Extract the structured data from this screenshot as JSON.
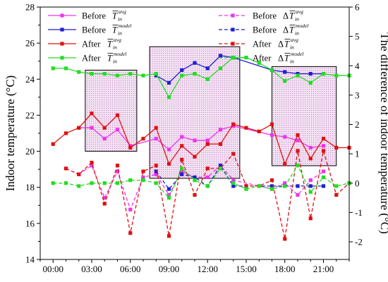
{
  "chart_data": {
    "type": "line",
    "xlabel": "",
    "ylabel_left": "Indoor temperature (°C)",
    "ylabel_right": "The difference of indoor temperature (°C)",
    "x_range": [
      -1,
      23
    ],
    "y_left_range": [
      14,
      28
    ],
    "y_right_range": [
      -2.6,
      6
    ],
    "x_ticks": [
      {
        "value": 0,
        "label": "00:00"
      },
      {
        "value": 3,
        "label": "03:00"
      },
      {
        "value": 6,
        "label": "06:00"
      },
      {
        "value": 9,
        "label": "09:00"
      },
      {
        "value": 12,
        "label": "12:00"
      },
      {
        "value": 15,
        "label": "15:00"
      },
      {
        "value": 18,
        "label": "18:00"
      },
      {
        "value": 21,
        "label": "21:00"
      }
    ],
    "y_left_ticks": [
      "14",
      "16",
      "18",
      "20",
      "22",
      "24",
      "26",
      "28"
    ],
    "y_right_ticks": [
      "-2",
      "-1",
      "0",
      "1",
      "2",
      "3",
      "4",
      "5",
      "6"
    ],
    "legend": {
      "placement": "top-left",
      "entries": [
        {
          "word": "Before",
          "sym": "T",
          "sub": "in",
          "sup": "avg",
          "delta": false
        },
        {
          "word": "Before",
          "sym": "T",
          "sub": "in",
          "sup": "model",
          "delta": false
        },
        {
          "word": "After",
          "sym": "T",
          "sub": "in",
          "sup": "avg",
          "delta": false
        },
        {
          "word": "After",
          "sym": "T",
          "sub": "in",
          "sup": "model",
          "delta": false
        },
        {
          "word": "Before",
          "sym": "T",
          "sub": "in",
          "sup": "avg",
          "delta": true
        },
        {
          "word": "Before",
          "sym": "T",
          "sub": "in",
          "sup": "model",
          "delta": true
        },
        {
          "word": "After",
          "sym": "T",
          "sub": "in",
          "sup": "avg",
          "delta": true
        },
        {
          "word": "After",
          "sym": "T",
          "sub": "in",
          "sup": "model",
          "delta": true
        }
      ]
    },
    "highlight_windows": [
      {
        "x": [
          2.5,
          6.5
        ],
        "y_left": [
          20,
          24.5
        ]
      },
      {
        "x": [
          7.5,
          14.5
        ],
        "y_left": [
          18.5,
          25.8
        ]
      },
      {
        "x": [
          17,
          22
        ],
        "y_left": [
          19.2,
          24.7
        ]
      }
    ],
    "series": [
      {
        "key": "before_avg",
        "axis": "left",
        "style": "solid",
        "color": "#ee33ee",
        "points": [
          [
            2,
            21.3
          ],
          [
            3,
            21.3
          ],
          [
            4,
            20.7
          ],
          [
            5,
            21.2
          ],
          [
            6,
            20.3
          ],
          [
            8,
            20.7
          ],
          [
            9,
            20.1
          ],
          [
            10,
            20.8
          ],
          [
            11,
            20.6
          ],
          [
            12,
            20.6
          ],
          [
            13,
            21.2
          ],
          [
            14,
            21.4
          ],
          [
            17,
            20.9
          ],
          [
            18,
            20.8
          ],
          [
            19,
            20.6
          ],
          [
            20,
            20.2
          ],
          [
            21,
            20.3
          ]
        ]
      },
      {
        "key": "before_model",
        "axis": "left",
        "style": "solid",
        "color": "#1f1fd1",
        "points": [
          [
            8,
            24.2
          ],
          [
            9,
            23.8
          ],
          [
            10,
            24.5
          ],
          [
            11,
            24.9
          ],
          [
            12,
            24.6
          ],
          [
            13,
            25.3
          ],
          [
            14,
            25.2
          ],
          [
            17,
            24.5
          ],
          [
            18,
            24.4
          ],
          [
            19,
            24.3
          ],
          [
            20,
            24.3
          ],
          [
            21,
            24.3
          ]
        ]
      },
      {
        "key": "after_avg",
        "axis": "left",
        "style": "solid",
        "color": "#e01010",
        "points": [
          [
            0,
            20.4
          ],
          [
            1,
            21.0
          ],
          [
            2,
            21.3
          ],
          [
            3,
            22.1
          ],
          [
            4,
            21.3
          ],
          [
            5,
            22.0
          ],
          [
            6,
            20.2
          ],
          [
            7,
            20.7
          ],
          [
            8,
            21.3
          ],
          [
            9,
            19.3
          ],
          [
            10,
            20.3
          ],
          [
            11,
            19.7
          ],
          [
            12,
            20.4
          ],
          [
            13,
            20.4
          ],
          [
            14,
            21.5
          ],
          [
            15,
            21.3
          ],
          [
            16,
            21.1
          ],
          [
            17,
            21.5
          ],
          [
            18,
            19.3
          ],
          [
            19,
            20.9
          ],
          [
            20,
            19.6
          ],
          [
            21,
            20.7
          ],
          [
            22,
            20.2
          ],
          [
            23,
            20.2
          ]
        ]
      },
      {
        "key": "after_model",
        "axis": "left",
        "style": "solid",
        "color": "#22dd22",
        "points": [
          [
            0,
            24.6
          ],
          [
            1,
            24.6
          ],
          [
            2,
            24.4
          ],
          [
            3,
            24.3
          ],
          [
            4,
            24.3
          ],
          [
            5,
            24.2
          ],
          [
            6,
            24.3
          ],
          [
            7,
            24.2
          ],
          [
            8,
            24.3
          ],
          [
            9,
            23.0
          ],
          [
            10,
            24.2
          ],
          [
            11,
            24.3
          ],
          [
            12,
            24.0
          ],
          [
            13,
            24.6
          ],
          [
            14,
            25.2
          ],
          [
            15,
            25.2
          ],
          [
            16,
            24.9
          ],
          [
            17,
            24.5
          ],
          [
            18,
            23.9
          ],
          [
            19,
            24.2
          ],
          [
            20,
            23.8
          ],
          [
            21,
            24.3
          ],
          [
            22,
            24.2
          ],
          [
            23,
            24.2
          ]
        ]
      },
      {
        "key": "delta_before_avg",
        "axis": "right",
        "style": "dashed",
        "color": "#ee33ee",
        "points": [
          [
            2,
            0.3
          ],
          [
            3,
            0.6
          ],
          [
            4,
            -0.5
          ],
          [
            5,
            0.4
          ],
          [
            6,
            -0.9
          ],
          [
            7,
            0.2
          ],
          [
            8,
            0.3
          ],
          [
            9,
            -0.4
          ],
          [
            10,
            0.4
          ],
          [
            11,
            0.2
          ],
          [
            12,
            0.2
          ],
          [
            13,
            0.6
          ],
          [
            14,
            0.1
          ],
          [
            17,
            -0.2
          ],
          [
            18,
            0.0
          ],
          [
            19,
            -0.4
          ],
          [
            20,
            0.1
          ],
          [
            21,
            0.4
          ]
        ]
      },
      {
        "key": "delta_before_model",
        "axis": "right",
        "style": "dashed",
        "color": "#1f1fd1",
        "points": [
          [
            8,
            0.4
          ],
          [
            9,
            -0.2
          ],
          [
            10,
            0.3
          ],
          [
            11,
            0.2
          ],
          [
            12,
            -0.1
          ],
          [
            13,
            0.6
          ],
          [
            14,
            -0.1
          ],
          [
            15,
            -0.1
          ],
          [
            17,
            -0.1
          ],
          [
            18,
            -0.1
          ],
          [
            19,
            -0.1
          ],
          [
            20,
            -0.1
          ],
          [
            21,
            -0.1
          ]
        ]
      },
      {
        "key": "delta_after_avg",
        "axis": "right",
        "style": "dashed",
        "color": "#e01010",
        "points": [
          [
            1,
            0.5
          ],
          [
            2,
            0.3
          ],
          [
            3,
            0.7
          ],
          [
            4,
            -0.7
          ],
          [
            5,
            0.6
          ],
          [
            6,
            -1.7
          ],
          [
            7,
            0.4
          ],
          [
            8,
            0.6
          ],
          [
            9,
            -1.8
          ],
          [
            10,
            0.8
          ],
          [
            11,
            -0.4
          ],
          [
            12,
            0.5
          ],
          [
            13,
            0.5
          ],
          [
            14,
            1.0
          ],
          [
            15,
            -0.1
          ],
          [
            16,
            -0.1
          ],
          [
            17,
            0.1
          ],
          [
            18,
            -1.9
          ],
          [
            19,
            1.1
          ],
          [
            20,
            -1.2
          ],
          [
            21,
            1.1
          ],
          [
            22,
            -0.4
          ],
          [
            23,
            0.0
          ]
        ]
      },
      {
        "key": "delta_after_model",
        "axis": "right",
        "style": "dashed",
        "color": "#22dd22",
        "points": [
          [
            0,
            0.0
          ],
          [
            1,
            0.0
          ],
          [
            2,
            -0.1
          ],
          [
            3,
            0.0
          ],
          [
            4,
            0.0
          ],
          [
            5,
            0.0
          ],
          [
            6,
            0.1
          ],
          [
            7,
            0.1
          ],
          [
            8,
            0.0
          ],
          [
            9,
            -0.5
          ],
          [
            10,
            0.5
          ],
          [
            11,
            0.1
          ],
          [
            12,
            -0.1
          ],
          [
            13,
            0.5
          ],
          [
            14,
            0.0
          ],
          [
            15,
            -0.2
          ],
          [
            16,
            -0.1
          ],
          [
            17,
            -0.2
          ],
          [
            18,
            -0.1
          ],
          [
            19,
            0.6
          ],
          [
            20,
            -0.3
          ],
          [
            21,
            0.2
          ],
          [
            22,
            -0.1
          ],
          [
            23,
            0.0
          ]
        ]
      }
    ]
  }
}
